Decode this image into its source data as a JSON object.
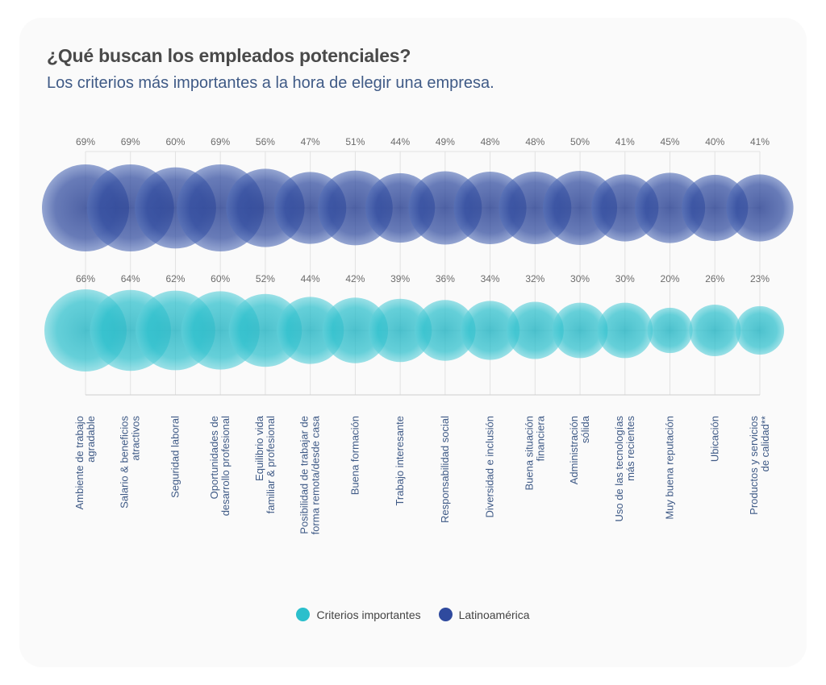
{
  "chart_data": {
    "type": "bubble",
    "title": "¿Qué buscan los empleados potenciales?",
    "subtitle": "Los criterios más importantes a la hora de elegir una empresa.",
    "categories": [
      "Ambiente de trabajo\nagradable",
      "Salario & beneficios\natractivos",
      "Seguridad laboral",
      "Oportunidades de\ndesarrollo profesional",
      "Equilibrio vida\nfamiliar & profesional",
      "Posibilidad de trabajar de\nforma remota/desde casa",
      "Buena formación",
      "Trabajo interesante",
      "Responsabilidad social",
      "Diversidad e inclusión",
      "Buena situación\nfinanciera",
      "Administración\nsólida",
      "Uso de las tecnologías\nmás recientes",
      "Muy buena reputación",
      "Ubicación",
      "Productos y servicios\nde calidad**"
    ],
    "series": [
      {
        "name": "Latinoamérica",
        "color": "#2f4a9e",
        "values": [
          69,
          69,
          60,
          69,
          56,
          47,
          51,
          44,
          49,
          48,
          48,
          50,
          41,
          45,
          40,
          41
        ],
        "labels": [
          "69%",
          "69%",
          "60%",
          "69%",
          "56%",
          "47%",
          "51%",
          "44%",
          "49%",
          "48%",
          "48%",
          "50%",
          "41%",
          "45%",
          "40%",
          "41%"
        ]
      },
      {
        "name": "Criterios importantes",
        "color": "#2bbfcc",
        "values": [
          66,
          64,
          62,
          60,
          52,
          44,
          42,
          39,
          36,
          34,
          32,
          30,
          30,
          20,
          26,
          23
        ],
        "labels": [
          "66%",
          "64%",
          "62%",
          "60%",
          "52%",
          "44%",
          "42%",
          "39%",
          "36%",
          "34%",
          "32%",
          "30%",
          "30%",
          "20%",
          "26%",
          "23%"
        ]
      }
    ]
  },
  "legend": {
    "items": [
      {
        "label": "Criterios importantes",
        "color": "#2bbfcc"
      },
      {
        "label": "Latinoamérica",
        "color": "#2f4a9e"
      }
    ]
  }
}
